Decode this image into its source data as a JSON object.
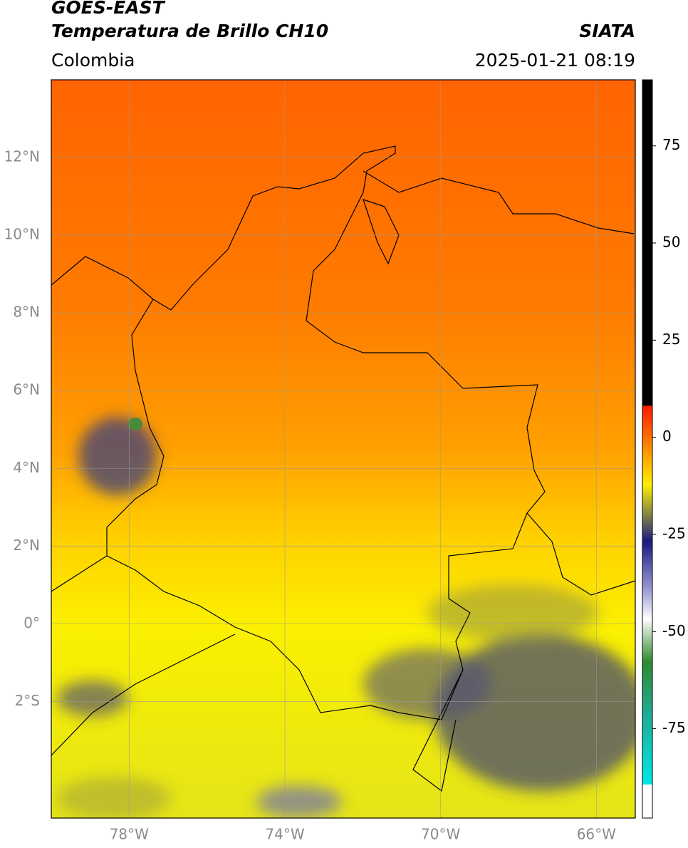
{
  "header": {
    "title": "GOES-EAST",
    "subtitle": "Temperatura de Brillo CH10",
    "source": "SIATA",
    "region": "Colombia",
    "datetime": "2025-01-21 08:19"
  },
  "map": {
    "lon_range": [
      -80,
      -65
    ],
    "lat_range": [
      -5,
      14
    ],
    "lon_ticks": [
      {
        "value": -78,
        "label": "78°W"
      },
      {
        "value": -74,
        "label": "74°W"
      },
      {
        "value": -70,
        "label": "70°W"
      },
      {
        "value": -66,
        "label": "66°W"
      }
    ],
    "lat_ticks": [
      {
        "value": 12,
        "label": "12°N"
      },
      {
        "value": 10,
        "label": "10°N"
      },
      {
        "value": 8,
        "label": "8°N"
      },
      {
        "value": 6,
        "label": "6°N"
      },
      {
        "value": 4,
        "label": "4°N"
      },
      {
        "value": 2,
        "label": "2°N"
      },
      {
        "value": 0,
        "label": "0°"
      },
      {
        "value": -2,
        "label": "2°S"
      }
    ]
  },
  "colorbar": {
    "lim": [
      -98,
      92
    ],
    "ticks": [
      75,
      50,
      25,
      0,
      -25,
      -50,
      -75
    ]
  }
}
